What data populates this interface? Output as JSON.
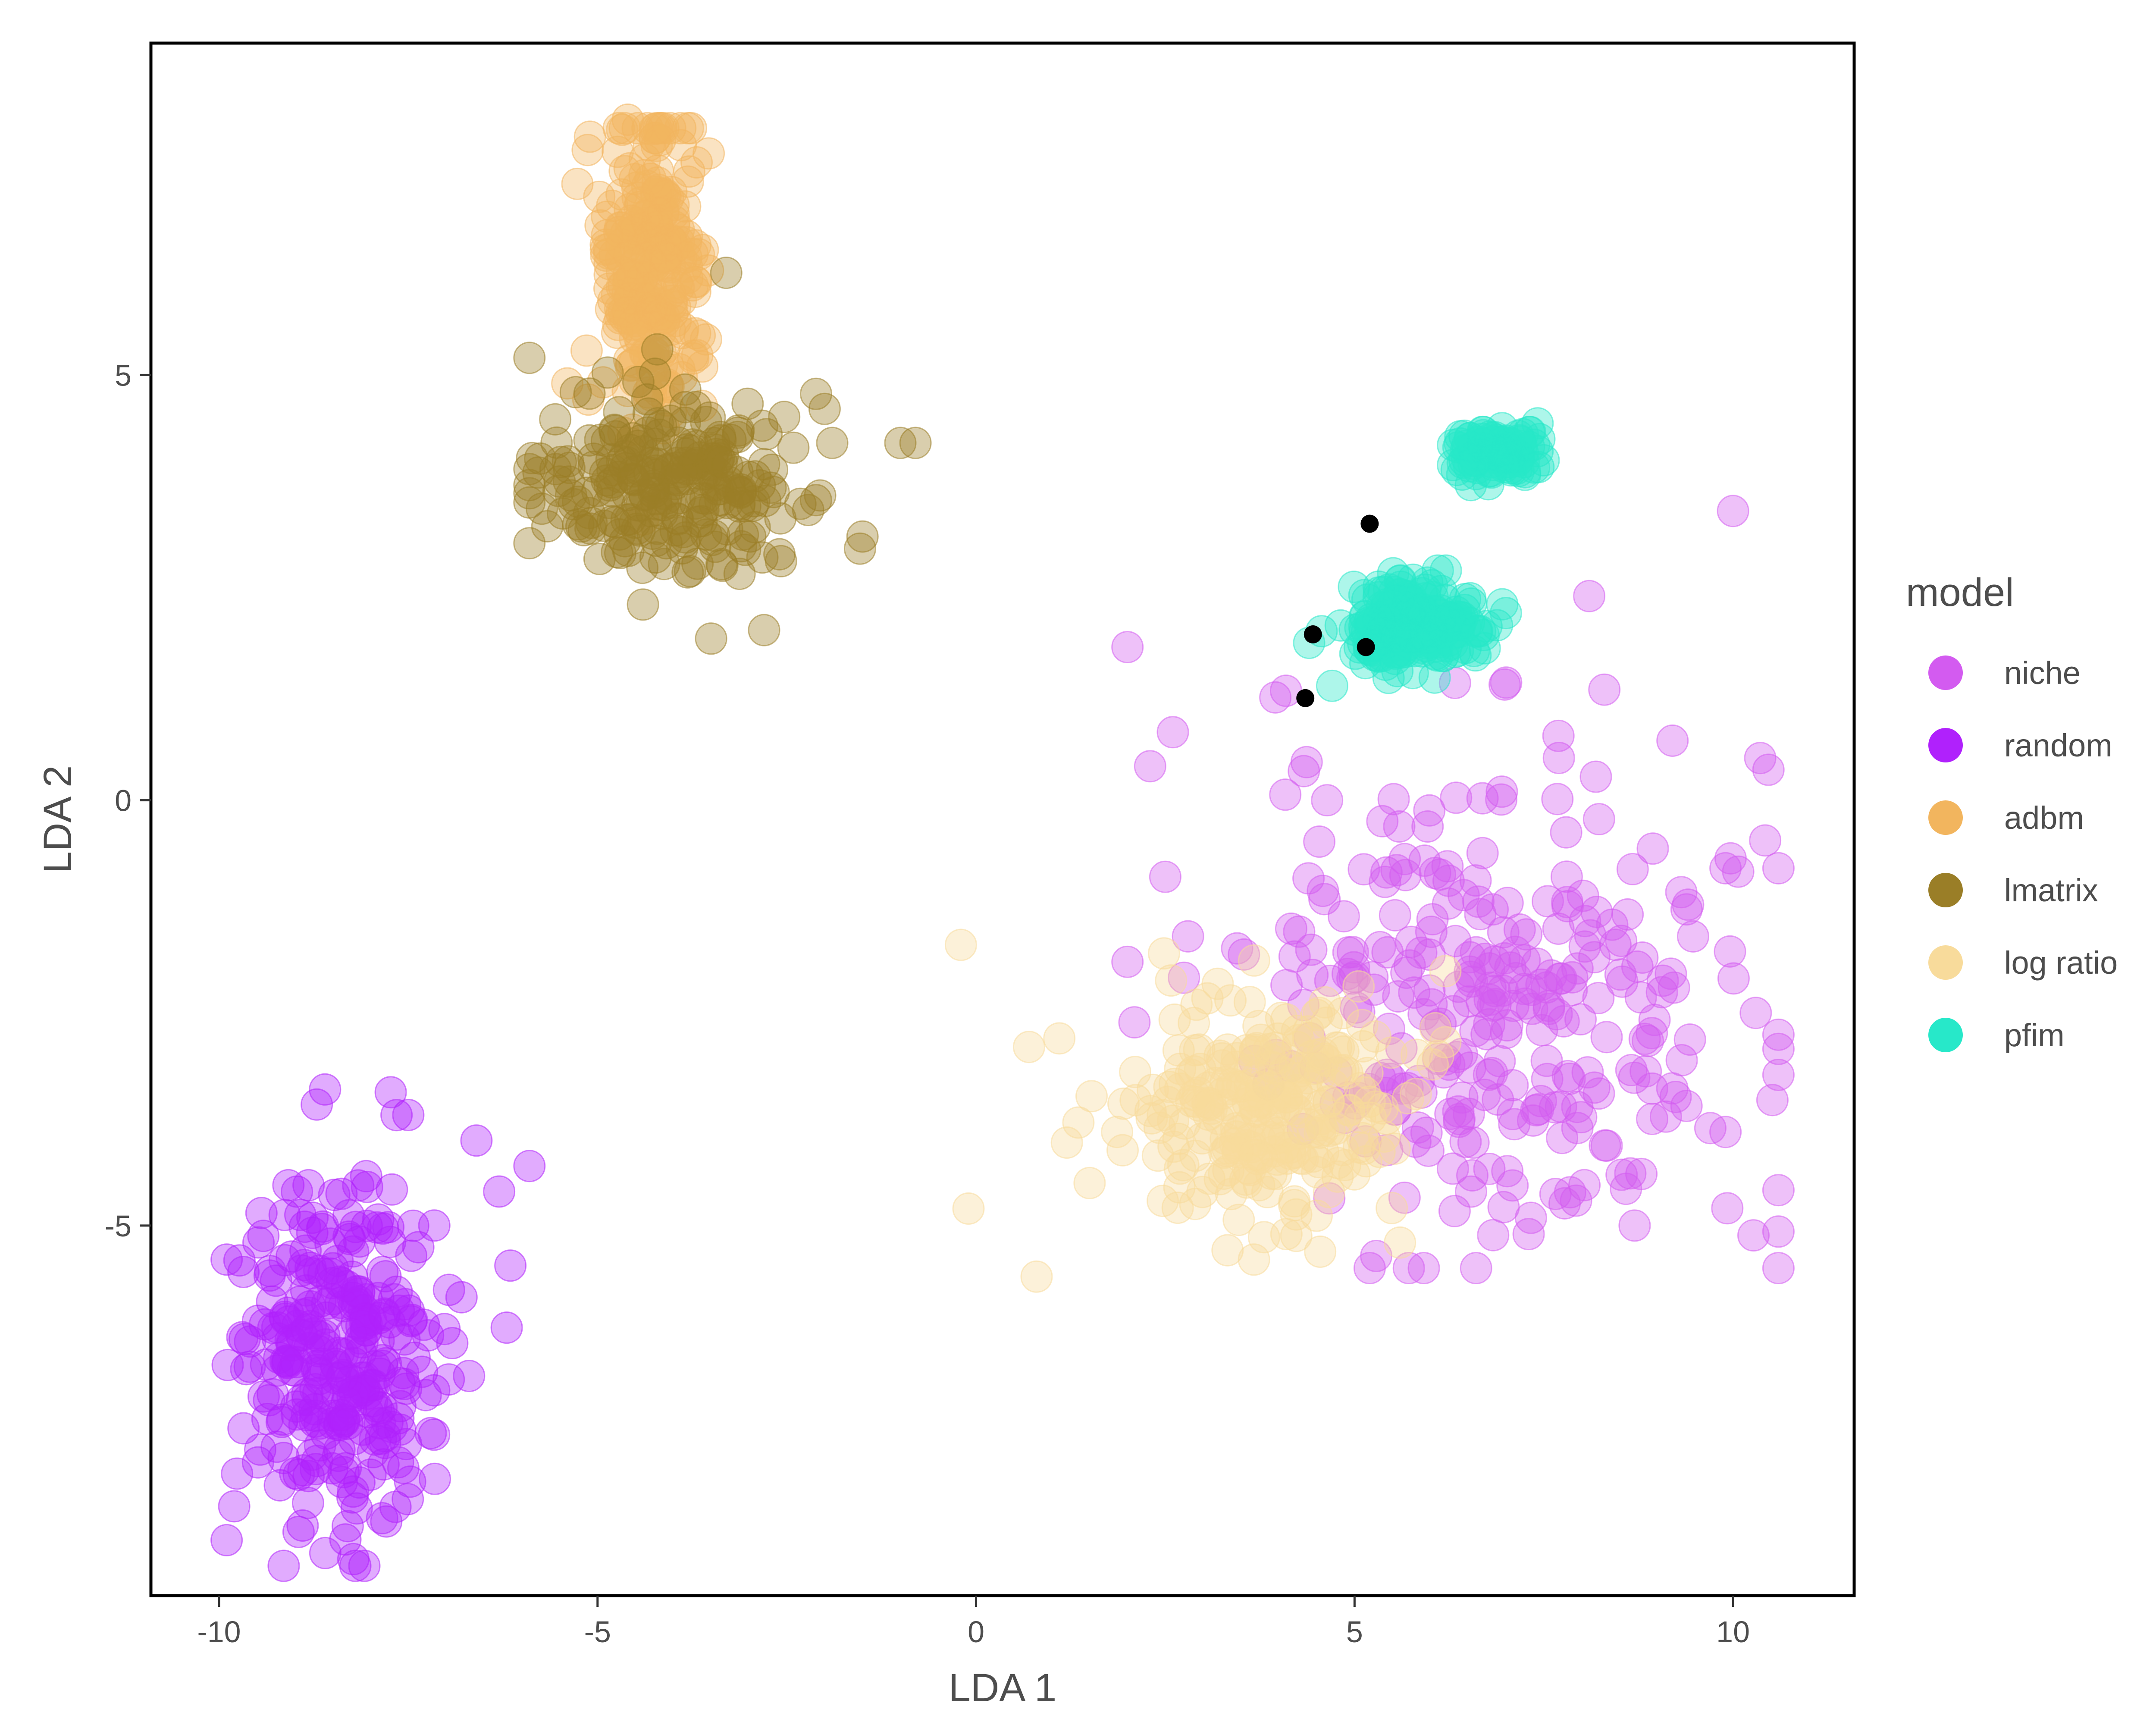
{
  "chart_data": {
    "type": "scatter",
    "xlabel": "LDA 1",
    "ylabel": "LDA 2",
    "xlim": [
      -10.9,
      11.6
    ],
    "ylim": [
      -9.35,
      8.9
    ],
    "xticks": [
      -10,
      -5,
      0,
      5,
      10
    ],
    "xtick_labels": [
      "-10",
      "-5",
      "0",
      "5",
      "10"
    ],
    "yticks": [
      -5,
      0,
      5
    ],
    "ytick_labels": [
      "-5",
      "0",
      "5"
    ],
    "grid": false,
    "legend": {
      "title": "model",
      "position": "right"
    },
    "series": [
      {
        "name": "niche",
        "color": "#D35BF0",
        "clusters": [
          {
            "center": [
              7.0,
              -2.4
            ],
            "spread": [
              1.6,
              1.4
            ],
            "n": 300,
            "range_x": [
              2.0,
              10.6
            ],
            "range_y": [
              -5.5,
              3.5
            ]
          },
          {
            "center": [
              4.0,
              1.3
            ],
            "spread": [
              0.1,
              0.1
            ],
            "n": 2
          }
        ],
        "points": [
          [
            2.0,
            1.8
          ],
          [
            10.0,
            3.4
          ],
          [
            8.1,
            2.4
          ],
          [
            8.3,
            1.3
          ],
          [
            2.6,
            0.8
          ],
          [
            2.3,
            0.4
          ],
          [
            9.2,
            0.7
          ],
          [
            10.6,
            -0.8
          ],
          [
            9.9,
            -0.8
          ],
          [
            10.3,
            -2.5
          ],
          [
            9.9,
            -3.9
          ],
          [
            8.7,
            -5.0
          ],
          [
            2.0,
            -1.9
          ],
          [
            2.5,
            -0.9
          ],
          [
            2.8,
            -1.6
          ],
          [
            5.2,
            -5.5
          ],
          [
            7.3,
            -5.1
          ]
        ]
      },
      {
        "name": "random",
        "color": "#B021FC",
        "clusters": [
          {
            "center": [
              -8.4,
              -6.5
            ],
            "spread": [
              0.65,
              1.05
            ],
            "n": 300,
            "range_x": [
              -9.9,
              -5.8
            ],
            "range_y": [
              -9.0,
              -3.4
            ]
          }
        ],
        "points": [
          [
            -8.6,
            -3.4
          ],
          [
            -7.5,
            -3.7
          ],
          [
            -6.6,
            -4.0
          ],
          [
            -5.9,
            -4.3
          ],
          [
            -6.2,
            -6.2
          ],
          [
            -9.9,
            -5.4
          ],
          [
            -9.8,
            -8.3
          ],
          [
            -8.2,
            -9.0
          ],
          [
            -6.3,
            -4.6
          ]
        ]
      },
      {
        "name": "adbm",
        "color": "#F2B55E",
        "clusters": [
          {
            "center": [
              -4.3,
              6.3
            ],
            "spread": [
              0.35,
              0.85
            ],
            "n": 260,
            "range_x": [
              -5.5,
              -3.3
            ],
            "range_y": [
              4.2,
              7.9
            ]
          }
        ],
        "points": [
          [
            -4.6,
            8.0
          ],
          [
            -3.9,
            7.7
          ],
          [
            -5.1,
            7.8
          ],
          [
            -5.4,
            4.9
          ],
          [
            -4.4,
            3.3
          ]
        ]
      },
      {
        "name": "lmatrix",
        "color": "#9A7E27",
        "clusters": [
          {
            "center": [
              -4.0,
              3.7
            ],
            "spread": [
              0.85,
              0.5
            ],
            "n": 240,
            "range_x": [
              -5.9,
              -1.5
            ],
            "range_y": [
              1.8,
              5.3
            ]
          }
        ],
        "points": [
          [
            -1.0,
            4.2
          ],
          [
            -0.8,
            4.2
          ],
          [
            -1.5,
            3.1
          ],
          [
            -5.9,
            5.2
          ],
          [
            -3.5,
            1.9
          ],
          [
            -2.8,
            2.0
          ],
          [
            -3.3,
            6.2
          ],
          [
            -1.9,
            4.2
          ],
          [
            -2.0,
            4.6
          ],
          [
            -4.4,
            2.3
          ]
        ]
      },
      {
        "name": "log ratio",
        "color": "#F8DB9B",
        "clusters": [
          {
            "center": [
              3.9,
              -3.6
            ],
            "spread": [
              0.85,
              0.7
            ],
            "n": 260,
            "range_x": [
              1.2,
              6.2
            ],
            "range_y": [
              -5.4,
              -1.8
            ]
          }
        ],
        "points": [
          [
            -0.2,
            -1.7
          ],
          [
            -0.1,
            -4.8
          ],
          [
            0.8,
            -5.6
          ],
          [
            0.7,
            -2.9
          ],
          [
            1.1,
            -2.8
          ],
          [
            1.5,
            -4.5
          ],
          [
            4.1,
            -5.1
          ],
          [
            5.6,
            -5.2
          ]
        ]
      },
      {
        "name": "pfim",
        "color": "#27E8C9",
        "clusters": [
          {
            "center": [
              5.8,
              2.05
            ],
            "spread": [
              0.42,
              0.24
            ],
            "n": 220,
            "range_x": [
              4.4,
              7.1
            ],
            "range_y": [
              1.3,
              2.7
            ]
          },
          {
            "center": [
              6.9,
              4.1
            ],
            "spread": [
              0.28,
              0.15
            ],
            "n": 120,
            "range_x": [
              6.3,
              7.5
            ],
            "range_y": [
              3.6,
              4.5
            ]
          }
        ],
        "points": [
          [
            4.4,
            1.85
          ],
          [
            7.0,
            2.2
          ]
        ]
      }
    ],
    "highlight_points": {
      "color": "#000000",
      "x": [
        5.2,
        4.45,
        5.15,
        4.35
      ],
      "y": [
        3.25,
        1.95,
        1.8,
        1.2
      ]
    }
  }
}
